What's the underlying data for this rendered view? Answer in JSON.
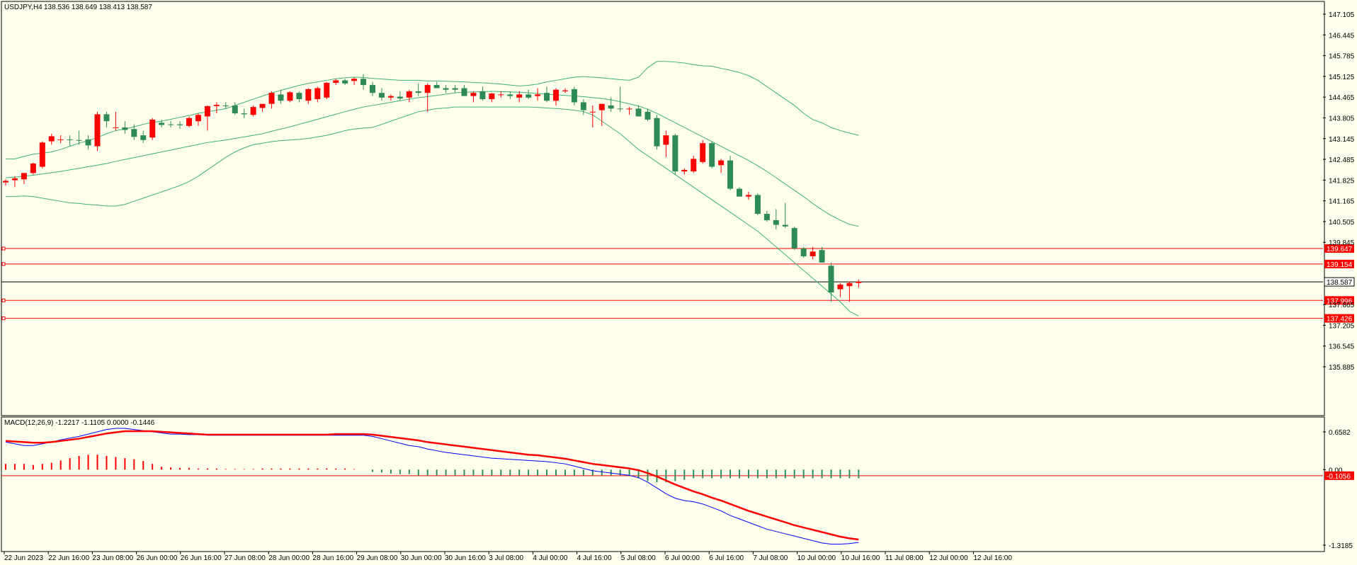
{
  "header": {
    "symbol": "USDJPY,H4",
    "ohlc": "138.536 138.649 138.413 138.587"
  },
  "macd_header": "MACD(12,26,9) -1.2217 -1.1105 0.0000 -0.1446",
  "price_axis": [
    "147.105",
    "146.445",
    "145.785",
    "145.125",
    "144.465",
    "143.805",
    "143.145",
    "142.485",
    "141.825",
    "141.165",
    "140.505",
    "139.845",
    "137.865",
    "137.205",
    "136.545",
    "135.885"
  ],
  "time_axis": [
    "22 Jun 2023",
    "22 Jun 16:00",
    "23 Jun 08:00",
    "26 Jun 00:00",
    "26 Jun 16:00",
    "27 Jun 08:00",
    "28 Jun 00:00",
    "28 Jun 16:00",
    "29 Jun 08:00",
    "30 Jun 00:00",
    "30 Jun 16:00",
    "3 Jul 08:00",
    "4 Jul 00:00",
    "4 Jul 16:00",
    "5 Jul 08:00",
    "6 Jul 00:00",
    "6 Jul 16:00",
    "7 Jul 08:00",
    "10 Jul 00:00",
    "10 Jul 16:00",
    "11 Jul 08:00",
    "12 Jul 00:00",
    "12 Jul 16:00"
  ],
  "macd_axis": [
    "0.6582",
    "0.00",
    "-1.3185"
  ],
  "levels": [
    {
      "price": 139.647,
      "label": "139.647",
      "color": "#FF0000"
    },
    {
      "price": 139.154,
      "label": "139.154",
      "color": "#FF0000"
    },
    {
      "price": 137.996,
      "label": "137.996",
      "color": "#FF0000"
    },
    {
      "price": 137.426,
      "label": "137.426",
      "color": "#FF0000"
    }
  ],
  "current_price": {
    "price": 138.587,
    "label": "138.587"
  },
  "macd_level": {
    "value": -0.1056,
    "label": "-0.1056"
  },
  "colors": {
    "bull": "#2E8B57",
    "bear": "#FF0000",
    "band": "#3CB371",
    "background": "#FFFFEE",
    "macd": "#0000FF",
    "signal": "#FF0000"
  },
  "chart_data": {
    "type": "candlestick",
    "price_range": [
      135.885,
      147.435
    ],
    "macd_range": [
      -1.3185,
      0.72
    ],
    "candles": [
      {
        "o": 141.75,
        "h": 141.85,
        "l": 141.65,
        "c": 141.8
      },
      {
        "o": 141.82,
        "h": 141.95,
        "l": 141.6,
        "c": 141.88
      },
      {
        "o": 141.85,
        "h": 142.05,
        "l": 141.7,
        "c": 142.05
      },
      {
        "o": 142.05,
        "h": 142.38,
        "l": 142.0,
        "c": 142.35
      },
      {
        "o": 142.25,
        "h": 143.06,
        "l": 142.2,
        "c": 143.02
      },
      {
        "o": 143.06,
        "h": 143.3,
        "l": 142.95,
        "c": 143.22
      },
      {
        "o": 143.1,
        "h": 143.25,
        "l": 143.0,
        "c": 143.12
      },
      {
        "o": 143.12,
        "h": 143.25,
        "l": 142.9,
        "c": 143.1
      },
      {
        "o": 143.1,
        "h": 143.4,
        "l": 142.95,
        "c": 143.08
      },
      {
        "o": 143.12,
        "h": 143.25,
        "l": 142.8,
        "c": 142.93
      },
      {
        "o": 142.9,
        "h": 144.0,
        "l": 142.75,
        "c": 143.92
      },
      {
        "o": 143.92,
        "h": 144.0,
        "l": 143.5,
        "c": 143.7
      },
      {
        "o": 143.5,
        "h": 144.0,
        "l": 143.4,
        "c": 143.5
      },
      {
        "o": 143.5,
        "h": 143.7,
        "l": 143.3,
        "c": 143.42
      },
      {
        "o": 143.45,
        "h": 143.6,
        "l": 143.1,
        "c": 143.2
      },
      {
        "o": 143.25,
        "h": 143.4,
        "l": 143.0,
        "c": 143.1
      },
      {
        "o": 143.18,
        "h": 143.8,
        "l": 143.1,
        "c": 143.75
      },
      {
        "o": 143.65,
        "h": 143.75,
        "l": 143.5,
        "c": 143.58
      },
      {
        "o": 143.6,
        "h": 143.7,
        "l": 143.5,
        "c": 143.58
      },
      {
        "o": 143.6,
        "h": 143.7,
        "l": 143.45,
        "c": 143.57
      },
      {
        "o": 143.55,
        "h": 143.85,
        "l": 143.5,
        "c": 143.8
      },
      {
        "o": 143.7,
        "h": 143.95,
        "l": 143.55,
        "c": 143.9
      },
      {
        "o": 143.85,
        "h": 144.2,
        "l": 143.4,
        "c": 144.18
      },
      {
        "o": 144.18,
        "h": 144.3,
        "l": 143.95,
        "c": 144.22
      },
      {
        "o": 144.2,
        "h": 144.3,
        "l": 144.1,
        "c": 144.18
      },
      {
        "o": 144.2,
        "h": 144.3,
        "l": 143.9,
        "c": 143.95
      },
      {
        "o": 143.95,
        "h": 144.1,
        "l": 143.8,
        "c": 143.92
      },
      {
        "o": 143.9,
        "h": 144.2,
        "l": 143.85,
        "c": 144.15
      },
      {
        "o": 144.12,
        "h": 144.25,
        "l": 144.0,
        "c": 144.25
      },
      {
        "o": 144.25,
        "h": 144.65,
        "l": 144.1,
        "c": 144.6
      },
      {
        "o": 144.55,
        "h": 144.7,
        "l": 144.25,
        "c": 144.35
      },
      {
        "o": 144.35,
        "h": 144.65,
        "l": 144.3,
        "c": 144.62
      },
      {
        "o": 144.6,
        "h": 144.65,
        "l": 144.3,
        "c": 144.4
      },
      {
        "o": 144.35,
        "h": 144.75,
        "l": 144.25,
        "c": 144.72
      },
      {
        "o": 144.4,
        "h": 144.8,
        "l": 144.3,
        "c": 144.75
      },
      {
        "o": 144.45,
        "h": 144.95,
        "l": 144.4,
        "c": 144.92
      },
      {
        "o": 144.92,
        "h": 145.05,
        "l": 144.85,
        "c": 145.0
      },
      {
        "o": 145.0,
        "h": 145.05,
        "l": 144.85,
        "c": 144.9
      },
      {
        "o": 144.98,
        "h": 145.1,
        "l": 144.85,
        "c": 145.05
      },
      {
        "o": 145.05,
        "h": 145.2,
        "l": 144.7,
        "c": 144.85
      },
      {
        "o": 144.85,
        "h": 144.95,
        "l": 144.5,
        "c": 144.6
      },
      {
        "o": 144.6,
        "h": 144.75,
        "l": 144.35,
        "c": 144.45
      },
      {
        "o": 144.45,
        "h": 144.55,
        "l": 144.35,
        "c": 144.5
      },
      {
        "o": 144.48,
        "h": 144.65,
        "l": 144.35,
        "c": 144.42
      },
      {
        "o": 144.45,
        "h": 144.7,
        "l": 144.3,
        "c": 144.65
      },
      {
        "o": 144.65,
        "h": 144.9,
        "l": 144.5,
        "c": 144.6
      },
      {
        "o": 144.6,
        "h": 144.9,
        "l": 144.0,
        "c": 144.85
      },
      {
        "o": 144.85,
        "h": 144.95,
        "l": 144.8,
        "c": 144.75
      },
      {
        "o": 144.75,
        "h": 144.85,
        "l": 144.6,
        "c": 144.7
      },
      {
        "o": 144.75,
        "h": 144.85,
        "l": 144.6,
        "c": 144.7
      },
      {
        "o": 144.75,
        "h": 144.85,
        "l": 144.5,
        "c": 144.5
      },
      {
        "o": 144.5,
        "h": 144.65,
        "l": 144.3,
        "c": 144.6
      },
      {
        "o": 144.65,
        "h": 144.8,
        "l": 144.35,
        "c": 144.4
      },
      {
        "o": 144.4,
        "h": 144.6,
        "l": 144.3,
        "c": 144.58
      },
      {
        "o": 144.55,
        "h": 144.65,
        "l": 144.45,
        "c": 144.55
      },
      {
        "o": 144.55,
        "h": 144.65,
        "l": 144.4,
        "c": 144.5
      },
      {
        "o": 144.45,
        "h": 144.65,
        "l": 144.3,
        "c": 144.55
      },
      {
        "o": 144.55,
        "h": 144.7,
        "l": 144.4,
        "c": 144.45
      },
      {
        "o": 144.5,
        "h": 144.75,
        "l": 144.35,
        "c": 144.55
      },
      {
        "o": 144.6,
        "h": 144.8,
        "l": 144.3,
        "c": 144.35
      },
      {
        "o": 144.35,
        "h": 144.75,
        "l": 144.2,
        "c": 144.7
      },
      {
        "o": 144.65,
        "h": 144.75,
        "l": 144.6,
        "c": 144.68
      },
      {
        "o": 144.72,
        "h": 144.8,
        "l": 144.2,
        "c": 144.3
      },
      {
        "o": 144.3,
        "h": 144.4,
        "l": 143.9,
        "c": 144.05
      },
      {
        "o": 144.0,
        "h": 144.2,
        "l": 143.5,
        "c": 144.0
      },
      {
        "o": 144.05,
        "h": 144.25,
        "l": 143.55,
        "c": 144.25
      },
      {
        "o": 144.2,
        "h": 144.45,
        "l": 144.0,
        "c": 144.1
      },
      {
        "o": 144.1,
        "h": 144.8,
        "l": 144.0,
        "c": 144.08
      },
      {
        "o": 144.08,
        "h": 144.15,
        "l": 143.9,
        "c": 144.1
      },
      {
        "o": 144.1,
        "h": 144.2,
        "l": 143.9,
        "c": 143.85
      },
      {
        "o": 144.0,
        "h": 144.1,
        "l": 143.7,
        "c": 143.75
      },
      {
        "o": 143.8,
        "h": 143.9,
        "l": 142.8,
        "c": 142.9
      },
      {
        "o": 142.95,
        "h": 143.4,
        "l": 142.55,
        "c": 143.25
      },
      {
        "o": 143.25,
        "h": 143.3,
        "l": 142.0,
        "c": 142.1
      },
      {
        "o": 142.1,
        "h": 142.2,
        "l": 142.0,
        "c": 142.15
      },
      {
        "o": 142.1,
        "h": 142.6,
        "l": 142.05,
        "c": 142.5
      },
      {
        "o": 142.4,
        "h": 143.1,
        "l": 142.35,
        "c": 143.0
      },
      {
        "o": 143.0,
        "h": 143.05,
        "l": 142.2,
        "c": 142.25
      },
      {
        "o": 142.3,
        "h": 142.5,
        "l": 142.05,
        "c": 142.45
      },
      {
        "o": 142.45,
        "h": 142.6,
        "l": 141.5,
        "c": 141.55
      },
      {
        "o": 141.55,
        "h": 141.6,
        "l": 141.3,
        "c": 141.3
      },
      {
        "o": 141.3,
        "h": 141.45,
        "l": 141.2,
        "c": 141.35
      },
      {
        "o": 141.35,
        "h": 141.4,
        "l": 140.7,
        "c": 140.75
      },
      {
        "o": 140.75,
        "h": 140.85,
        "l": 140.5,
        "c": 140.55
      },
      {
        "o": 140.55,
        "h": 140.9,
        "l": 140.25,
        "c": 140.4
      },
      {
        "o": 140.4,
        "h": 141.1,
        "l": 140.3,
        "c": 140.35
      },
      {
        "o": 140.3,
        "h": 140.35,
        "l": 139.6,
        "c": 139.65
      },
      {
        "o": 139.65,
        "h": 139.7,
        "l": 139.35,
        "c": 139.4
      },
      {
        "o": 139.4,
        "h": 139.7,
        "l": 139.3,
        "c": 139.55
      },
      {
        "o": 139.6,
        "h": 139.7,
        "l": 139.2,
        "c": 139.2
      },
      {
        "o": 139.1,
        "h": 139.2,
        "l": 137.95,
        "c": 138.25
      },
      {
        "o": 138.35,
        "h": 138.55,
        "l": 138.1,
        "c": 138.5
      },
      {
        "o": 138.45,
        "h": 138.6,
        "l": 137.95,
        "c": 138.55
      },
      {
        "o": 138.55,
        "h": 138.66,
        "l": 138.4,
        "c": 138.59
      }
    ],
    "bollinger": {
      "upper": [
        142.5,
        142.5,
        142.58,
        142.65,
        142.68,
        142.72,
        142.8,
        142.9,
        143.0,
        143.08,
        143.18,
        143.3,
        143.4,
        143.45,
        143.52,
        143.6,
        143.66,
        143.7,
        143.76,
        143.82,
        143.88,
        143.95,
        144.0,
        144.05,
        144.1,
        144.2,
        144.3,
        144.4,
        144.5,
        144.6,
        144.68,
        144.76,
        144.84,
        144.9,
        144.95,
        145.0,
        145.05,
        145.08,
        145.1,
        145.09,
        145.06,
        145.04,
        145.02,
        145.0,
        145.0,
        145.0,
        144.98,
        144.98,
        144.97,
        144.96,
        144.95,
        144.93,
        144.92,
        144.9,
        144.88,
        144.85,
        144.82,
        144.84,
        144.88,
        144.95,
        145.0,
        145.05,
        145.1,
        145.12,
        145.1,
        145.08,
        145.05,
        145.02,
        145.0,
        145.1,
        145.4,
        145.6,
        145.6,
        145.58,
        145.55,
        145.5,
        145.46,
        145.45,
        145.38,
        145.32,
        145.25,
        145.15,
        145.0,
        144.8,
        144.6,
        144.4,
        144.2,
        143.95,
        143.75,
        143.65,
        143.5,
        143.4,
        143.32,
        143.25
      ],
      "middle": [
        141.9,
        141.92,
        141.95,
        141.98,
        142.02,
        142.06,
        142.1,
        142.15,
        142.2,
        142.25,
        142.3,
        142.35,
        142.42,
        142.48,
        142.54,
        142.6,
        142.66,
        142.72,
        142.78,
        142.84,
        142.9,
        142.96,
        143.02,
        143.06,
        143.1,
        143.15,
        143.2,
        143.25,
        143.3,
        143.38,
        143.45,
        143.52,
        143.6,
        143.68,
        143.76,
        143.84,
        143.92,
        144.0,
        144.08,
        144.15,
        144.2,
        144.25,
        144.3,
        144.35,
        144.4,
        144.45,
        144.48,
        144.52,
        144.56,
        144.6,
        144.62,
        144.63,
        144.64,
        144.65,
        144.64,
        144.63,
        144.62,
        144.6,
        144.58,
        144.56,
        144.54,
        144.52,
        144.5,
        144.48,
        144.45,
        144.42,
        144.38,
        144.32,
        144.25,
        144.18,
        144.08,
        143.95,
        143.8,
        143.65,
        143.5,
        143.35,
        143.2,
        143.05,
        142.9,
        142.75,
        142.6,
        142.45,
        142.28,
        142.1,
        141.9,
        141.7,
        141.5,
        141.3,
        141.08,
        140.88,
        140.7,
        140.55,
        140.42,
        140.35
      ],
      "lower": [
        141.3,
        141.3,
        141.32,
        141.3,
        141.25,
        141.2,
        141.15,
        141.1,
        141.08,
        141.05,
        141.03,
        141.0,
        141.0,
        141.05,
        141.15,
        141.25,
        141.35,
        141.45,
        141.55,
        141.65,
        141.78,
        141.95,
        142.15,
        142.35,
        142.55,
        142.72,
        142.85,
        142.95,
        143.0,
        143.05,
        143.08,
        143.1,
        143.12,
        143.15,
        143.2,
        143.25,
        143.32,
        143.4,
        143.45,
        143.48,
        143.5,
        143.6,
        143.7,
        143.8,
        143.9,
        144.0,
        144.05,
        144.1,
        144.12,
        144.15,
        144.15,
        144.15,
        144.15,
        144.15,
        144.15,
        144.15,
        144.15,
        144.15,
        144.14,
        144.12,
        144.1,
        144.08,
        144.05,
        144.0,
        143.9,
        143.7,
        143.5,
        143.3,
        143.05,
        142.8,
        142.6,
        142.4,
        142.2,
        142.0,
        141.8,
        141.6,
        141.4,
        141.2,
        141.0,
        140.8,
        140.6,
        140.4,
        140.2,
        139.95,
        139.7,
        139.45,
        139.2,
        138.95,
        138.7,
        138.45,
        138.2,
        137.95,
        137.65,
        137.5
      ]
    },
    "macd": {
      "line": [
        0.48,
        0.45,
        0.42,
        0.42,
        0.45,
        0.48,
        0.52,
        0.55,
        0.58,
        0.62,
        0.66,
        0.7,
        0.72,
        0.72,
        0.7,
        0.68,
        0.66,
        0.64,
        0.62,
        0.62,
        0.61,
        0.61,
        0.6,
        0.6,
        0.6,
        0.6,
        0.6,
        0.6,
        0.6,
        0.6,
        0.6,
        0.6,
        0.6,
        0.6,
        0.6,
        0.6,
        0.6,
        0.6,
        0.6,
        0.6,
        0.58,
        0.54,
        0.5,
        0.46,
        0.42,
        0.4,
        0.36,
        0.33,
        0.3,
        0.28,
        0.26,
        0.24,
        0.22,
        0.2,
        0.19,
        0.18,
        0.17,
        0.16,
        0.15,
        0.14,
        0.12,
        0.1,
        0.06,
        0.02,
        -0.02,
        -0.04,
        -0.06,
        -0.08,
        -0.1,
        -0.14,
        -0.22,
        -0.32,
        -0.42,
        -0.5,
        -0.54,
        -0.56,
        -0.6,
        -0.66,
        -0.72,
        -0.8,
        -0.86,
        -0.92,
        -0.98,
        -1.04,
        -1.08,
        -1.12,
        -1.16,
        -1.2,
        -1.24,
        -1.28,
        -1.3,
        -1.3,
        -1.29,
        -1.27
      ],
      "signal": [
        0.5,
        0.49,
        0.48,
        0.47,
        0.47,
        0.48,
        0.5,
        0.52,
        0.54,
        0.57,
        0.6,
        0.63,
        0.65,
        0.67,
        0.67,
        0.67,
        0.67,
        0.66,
        0.65,
        0.64,
        0.63,
        0.62,
        0.61,
        0.61,
        0.61,
        0.61,
        0.61,
        0.61,
        0.61,
        0.61,
        0.61,
        0.61,
        0.61,
        0.61,
        0.61,
        0.61,
        0.62,
        0.62,
        0.62,
        0.62,
        0.61,
        0.59,
        0.57,
        0.55,
        0.53,
        0.51,
        0.48,
        0.46,
        0.44,
        0.42,
        0.4,
        0.38,
        0.36,
        0.34,
        0.32,
        0.3,
        0.28,
        0.26,
        0.25,
        0.23,
        0.21,
        0.19,
        0.16,
        0.13,
        0.1,
        0.08,
        0.06,
        0.04,
        0.02,
        -0.01,
        -0.06,
        -0.12,
        -0.19,
        -0.26,
        -0.32,
        -0.38,
        -0.43,
        -0.49,
        -0.54,
        -0.6,
        -0.66,
        -0.72,
        -0.77,
        -0.82,
        -0.87,
        -0.92,
        -0.97,
        -1.01,
        -1.05,
        -1.09,
        -1.13,
        -1.17,
        -1.2,
        -1.22
      ],
      "histogram": [
        0.1,
        0.1,
        0.1,
        0.08,
        0.1,
        0.12,
        0.16,
        0.2,
        0.24,
        0.26,
        0.26,
        0.24,
        0.22,
        0.2,
        0.18,
        0.15,
        0.1,
        0.05,
        0.04,
        0.03,
        0.03,
        0.02,
        0.02,
        0.02,
        0.01,
        0.01,
        0.01,
        0.01,
        0.02,
        0.02,
        0.02,
        0.02,
        0.02,
        0.02,
        0.02,
        0.02,
        0.02,
        0.02,
        0.01,
        0.0,
        -0.04,
        -0.05,
        -0.07,
        -0.08,
        -0.08,
        -0.1,
        -0.1,
        -0.1,
        -0.1,
        -0.1,
        -0.1,
        -0.1,
        -0.1,
        -0.1,
        -0.1,
        -0.1,
        -0.1,
        -0.1,
        -0.1,
        -0.1,
        -0.1,
        -0.1,
        -0.1,
        -0.1,
        -0.1,
        -0.1,
        -0.1,
        -0.1,
        -0.1,
        -0.15,
        -0.2,
        -0.22,
        -0.22,
        -0.2,
        -0.18,
        -0.15,
        -0.15,
        -0.15,
        -0.15,
        -0.15,
        -0.15,
        -0.15,
        -0.15,
        -0.15,
        -0.15,
        -0.15,
        -0.15,
        -0.15,
        -0.15,
        -0.15,
        -0.15,
        -0.15,
        -0.15,
        -0.15
      ]
    }
  }
}
